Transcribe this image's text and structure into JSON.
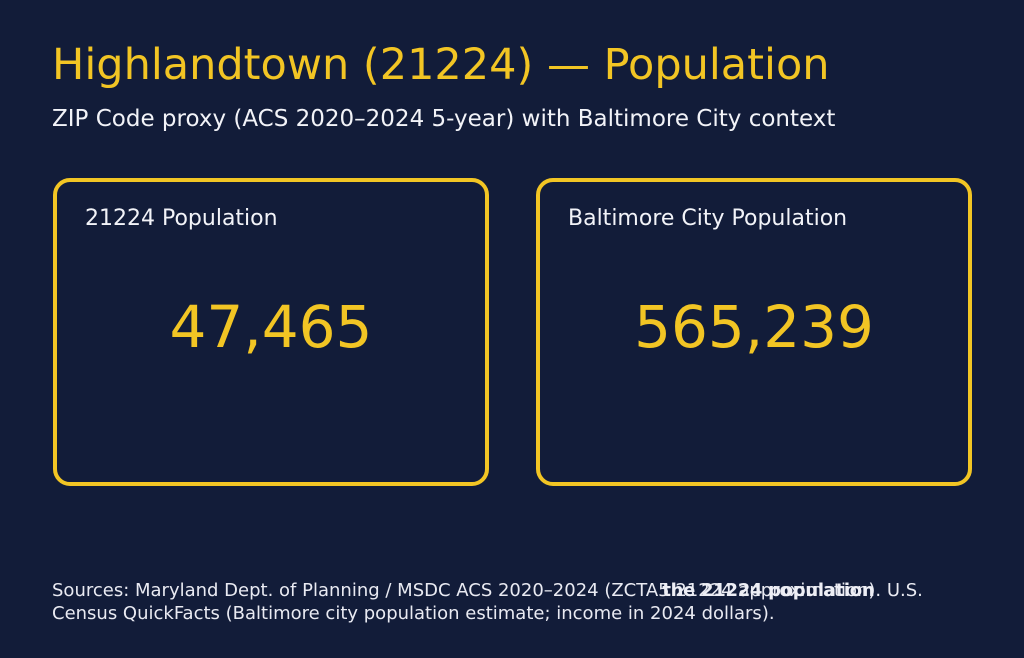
{
  "header": {
    "title": "Highlandtown (21224) — Population",
    "subtitle": "ZIP Code proxy (ACS 2020–2024 5-year) with Baltimore City context"
  },
  "cards": [
    {
      "label": "21224 Population",
      "value": "47,465"
    },
    {
      "label": "Baltimore City Population",
      "value": "565,239"
    }
  ],
  "footer": {
    "line1_prefix": "Sources: Maryland Dept. of Planning / MSDC ACS 2020–2024 (ZCTA5 ",
    "line1_suffix": "21224 approximation). U.S.",
    "line2": "Census QuickFacts (Baltimore city population estimate; income in 2024 dollars).",
    "overlay_text": "the 21224 population"
  },
  "colors": {
    "background": "#121C39",
    "accent_gold": "#F2C524",
    "heading_text": "#F2F3F8",
    "footer_text": "#E9EAF2"
  },
  "chart_data": {
    "type": "table",
    "title": "Highlandtown (21224) — Population",
    "subtitle": "ZIP Code proxy (ACS 2020–2024 5-year) with Baltimore City context",
    "categories": [
      "21224 Population",
      "Baltimore City Population"
    ],
    "values": [
      47465,
      565239
    ]
  }
}
